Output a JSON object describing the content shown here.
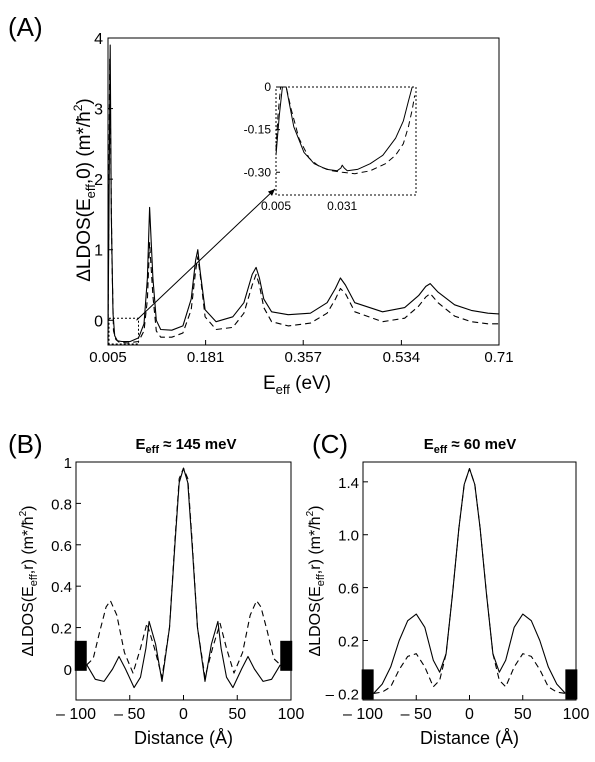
{
  "chart_data": [
    {
      "panel_label": "(A)",
      "type": "line",
      "xlabel_main": "E",
      "xlabel_sub": "eff",
      "xlabel_unit": "(eV)",
      "ylabel_main": "ΔLDOS(E",
      "ylabel_sub": "eff",
      "ylabel_rest": ",0) (m*/ħ",
      "ylabel_sup": "2",
      "ylabel_end": ")",
      "xlim": [
        0.005,
        0.71
      ],
      "ylim": [
        -0.35,
        4.0
      ],
      "xtick_labels": [
        "0.005",
        "0.181",
        "0.357",
        "0.534",
        "0.71"
      ],
      "xticks": [
        0.005,
        0.181,
        0.357,
        0.534,
        0.71
      ],
      "ytick_labels": [
        "0",
        "1",
        "2",
        "3",
        "4"
      ],
      "yticks": [
        0,
        1,
        2,
        3,
        4
      ],
      "series": [
        {
          "style": "solid",
          "x": [
            0.005,
            0.009,
            0.011,
            0.014,
            0.017,
            0.022,
            0.03,
            0.045,
            0.06,
            0.07,
            0.076,
            0.08,
            0.086,
            0.092,
            0.1,
            0.12,
            0.14,
            0.155,
            0.163,
            0.167,
            0.171,
            0.18,
            0.2,
            0.23,
            0.25,
            0.265,
            0.272,
            0.278,
            0.286,
            0.3,
            0.33,
            0.37,
            0.4,
            0.415,
            0.424,
            0.433,
            0.45,
            0.5,
            0.54,
            0.565,
            0.578,
            0.586,
            0.6,
            0.63,
            0.66,
            0.69,
            0.71
          ],
          "y": [
            -0.25,
            3.9,
            1.5,
            0.1,
            -0.22,
            -0.29,
            -0.3,
            -0.3,
            -0.25,
            -0.05,
            0.6,
            1.6,
            0.6,
            0.0,
            -0.13,
            -0.14,
            -0.08,
            0.3,
            0.85,
            1.0,
            0.7,
            0.15,
            -0.02,
            0.05,
            0.25,
            0.65,
            0.75,
            0.6,
            0.3,
            0.12,
            0.08,
            0.1,
            0.25,
            0.45,
            0.6,
            0.5,
            0.25,
            0.12,
            0.18,
            0.35,
            0.48,
            0.52,
            0.4,
            0.22,
            0.14,
            0.1,
            0.09
          ]
        },
        {
          "style": "dashed",
          "x": [
            0.005,
            0.008,
            0.012,
            0.015,
            0.019,
            0.025,
            0.04,
            0.06,
            0.07,
            0.076,
            0.08,
            0.086,
            0.092,
            0.1,
            0.12,
            0.14,
            0.155,
            0.163,
            0.167,
            0.172,
            0.18,
            0.2,
            0.23,
            0.25,
            0.265,
            0.272,
            0.278,
            0.286,
            0.3,
            0.33,
            0.37,
            0.4,
            0.415,
            0.424,
            0.433,
            0.45,
            0.5,
            0.54,
            0.565,
            0.578,
            0.586,
            0.6,
            0.63,
            0.66,
            0.69,
            0.71
          ],
          "y": [
            -0.28,
            3.7,
            0.9,
            -0.15,
            -0.27,
            -0.31,
            -0.32,
            -0.3,
            -0.15,
            0.3,
            1.1,
            0.35,
            -0.15,
            -0.24,
            -0.24,
            -0.18,
            0.15,
            0.7,
            0.9,
            0.6,
            0.05,
            -0.13,
            -0.1,
            0.1,
            0.5,
            0.65,
            0.5,
            0.18,
            -0.02,
            -0.08,
            -0.04,
            0.1,
            0.3,
            0.45,
            0.38,
            0.12,
            -0.02,
            0.03,
            0.2,
            0.33,
            0.38,
            0.25,
            0.06,
            -0.02,
            -0.05,
            -0.05
          ]
        }
      ],
      "inset": {
        "xlim": [
          0.005,
          0.06
        ],
        "ylim": [
          -0.38,
          0.0
        ],
        "xtick_labels": [
          "0.005",
          "0.031"
        ],
        "xticks": [
          0.005,
          0.031
        ],
        "ytick_labels": [
          "0",
          "-0.15",
          "-0.30"
        ],
        "yticks": [
          0,
          -0.15,
          -0.3
        ],
        "series": [
          {
            "style": "solid",
            "x": [
              0.005,
              0.0063,
              0.0075,
              0.009,
              0.012,
              0.016,
              0.02,
              0.025,
              0.029,
              0.0305,
              0.031,
              0.0318,
              0.033,
              0.037,
              0.042,
              0.047,
              0.052,
              0.055,
              0.057,
              0.0585
            ],
            "y": [
              -0.24,
              -0.1,
              0.0,
              0.0,
              -0.14,
              -0.23,
              -0.27,
              -0.29,
              -0.295,
              -0.285,
              -0.275,
              -0.285,
              -0.295,
              -0.29,
              -0.27,
              -0.24,
              -0.18,
              -0.12,
              -0.05,
              0.0
            ]
          },
          {
            "style": "dashed",
            "x": [
              0.005,
              0.0058,
              0.0068,
              0.009,
              0.011,
              0.014,
              0.018,
              0.022,
              0.027,
              0.031,
              0.036,
              0.042,
              0.048,
              0.052,
              0.055,
              0.057,
              0.0585,
              0.0595
            ],
            "y": [
              -0.22,
              -0.1,
              0.0,
              0.0,
              -0.08,
              -0.18,
              -0.25,
              -0.28,
              -0.295,
              -0.3,
              -0.305,
              -0.295,
              -0.27,
              -0.24,
              -0.2,
              -0.14,
              -0.08,
              -0.03
            ]
          }
        ]
      }
    },
    {
      "panel_label": "(B)",
      "type": "line",
      "title_main": "E",
      "title_sub": "eff",
      "title_rest": " ≈ 145 meV",
      "xlabel": "Distance (Å)",
      "ylabel_main": "ΔLDOS(E",
      "ylabel_sub": "eff",
      "ylabel_rest": ",r) (m*/ħ",
      "ylabel_sup": "2",
      "ylabel_end": ")",
      "xlim": [
        -100,
        100
      ],
      "ylim": [
        -0.15,
        1.0
      ],
      "xtick_labels": [
        "– 100",
        "– 50",
        "0",
        "50",
        "100"
      ],
      "xticks": [
        -100,
        -50,
        0,
        50,
        100
      ],
      "ytick_labels": [
        "0",
        "0.2",
        "0.4",
        "0.6",
        "0.8",
        "1"
      ],
      "yticks": [
        0,
        0.2,
        0.4,
        0.6,
        0.8,
        1.0
      ],
      "series": [
        {
          "style": "solid",
          "x": [
            -90,
            -82,
            -74,
            -66,
            -60,
            -54,
            -46,
            -40,
            -35,
            -32,
            -26,
            -20,
            -13,
            -8,
            -4,
            0,
            4,
            8,
            13,
            20,
            26,
            32,
            35,
            40,
            46,
            54,
            60,
            66,
            74,
            82,
            90
          ],
          "y": [
            0.02,
            -0.05,
            -0.06,
            0.0,
            0.06,
            0.0,
            -0.09,
            -0.04,
            0.1,
            0.23,
            0.12,
            -0.06,
            0.2,
            0.6,
            0.9,
            0.97,
            0.9,
            0.6,
            0.2,
            -0.06,
            0.12,
            0.23,
            0.1,
            -0.04,
            -0.09,
            0.0,
            0.06,
            0.0,
            -0.06,
            -0.05,
            0.02
          ]
        },
        {
          "style": "dashed",
          "x": [
            -90,
            -84,
            -78,
            -72,
            -68,
            -62,
            -55,
            -47,
            -40,
            -34,
            -27,
            -20,
            -13,
            -8,
            -4,
            0,
            4,
            8,
            13,
            20,
            27,
            34,
            40,
            47,
            55,
            62,
            68,
            72,
            78,
            84,
            90
          ],
          "y": [
            0.02,
            0.05,
            0.18,
            0.3,
            0.33,
            0.26,
            0.08,
            -0.02,
            0.1,
            0.22,
            0.1,
            -0.04,
            0.2,
            0.62,
            0.92,
            0.97,
            0.92,
            0.62,
            0.2,
            -0.04,
            0.1,
            0.22,
            0.1,
            -0.02,
            0.08,
            0.26,
            0.33,
            0.3,
            0.18,
            0.05,
            0.02
          ]
        }
      ]
    },
    {
      "panel_label": "(C)",
      "type": "line",
      "title_main": "E",
      "title_sub": "eff",
      "title_rest": " ≈ 60 meV",
      "xlabel": "Distance (Å)",
      "ylabel_main": "ΔLDOS(E",
      "ylabel_sub": "eff",
      "ylabel_rest": ",r) (m*/ħ",
      "ylabel_sup": "2",
      "ylabel_end": ")",
      "xlim": [
        -100,
        100
      ],
      "ylim": [
        -0.25,
        1.55
      ],
      "xtick_labels": [
        "– 100",
        "– 50",
        "0",
        "50",
        "100"
      ],
      "xticks": [
        -100,
        -50,
        0,
        50,
        100
      ],
      "ytick_labels": [
        "– 0.2",
        "0.2",
        "0.6",
        "1.0",
        "1.4"
      ],
      "yticks": [
        -0.2,
        0.2,
        0.6,
        1.0,
        1.4
      ],
      "series": [
        {
          "style": "solid",
          "x": [
            -90,
            -82,
            -74,
            -66,
            -58,
            -50,
            -42,
            -34,
            -28,
            -22,
            -16,
            -10,
            -5,
            0,
            5,
            10,
            16,
            22,
            28,
            34,
            42,
            50,
            58,
            66,
            74,
            82,
            90
          ],
          "y": [
            -0.2,
            -0.13,
            0.0,
            0.2,
            0.35,
            0.4,
            0.3,
            0.05,
            -0.04,
            0.1,
            0.55,
            1.05,
            1.38,
            1.5,
            1.38,
            1.05,
            0.55,
            0.1,
            -0.04,
            0.05,
            0.3,
            0.4,
            0.35,
            0.2,
            0.0,
            -0.13,
            -0.2
          ]
        },
        {
          "style": "dashed",
          "x": [
            -90,
            -82,
            -74,
            -66,
            -58,
            -50,
            -42,
            -34,
            -28,
            -22,
            -16,
            -10,
            -5,
            0,
            5,
            10,
            16,
            22,
            28,
            34,
            42,
            50,
            58,
            66,
            74,
            82,
            90
          ],
          "y": [
            -0.2,
            -0.19,
            -0.15,
            -0.02,
            0.08,
            0.1,
            0.0,
            -0.15,
            -0.1,
            0.1,
            0.55,
            1.05,
            1.38,
            1.5,
            1.38,
            1.05,
            0.55,
            0.1,
            -0.1,
            -0.15,
            0.0,
            0.1,
            0.08,
            -0.02,
            -0.15,
            -0.19,
            -0.2
          ]
        }
      ]
    }
  ]
}
